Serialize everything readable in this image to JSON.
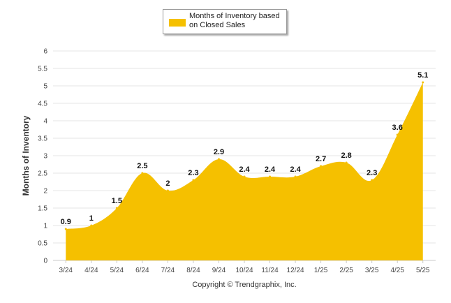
{
  "legend": {
    "label": "Months of Inventory based on Closed Sales",
    "color": "#F5C000"
  },
  "footer": {
    "copyright": "Copyright © Trendgraphix, Inc."
  },
  "chart_data": {
    "type": "area",
    "title": "",
    "xlabel": "",
    "ylabel": "Months of Inventory",
    "categories": [
      "3/24",
      "4/24",
      "5/24",
      "6/24",
      "7/24",
      "8/24",
      "9/24",
      "10/24",
      "11/24",
      "12/24",
      "1/25",
      "2/25",
      "3/25",
      "4/25",
      "5/25"
    ],
    "series": [
      {
        "name": "Months of Inventory based on Closed Sales",
        "values": [
          0.9,
          1,
          1.5,
          2.5,
          2,
          2.3,
          2.9,
          2.4,
          2.4,
          2.4,
          2.7,
          2.8,
          2.3,
          3.6,
          5.1
        ],
        "labels": [
          "0.9",
          "1",
          "1.5",
          "2.5",
          "2",
          "2.3",
          "2.9",
          "2.4",
          "2.4",
          "2.4",
          "2.7",
          "2.8",
          "2.3",
          "3.6",
          "5.1"
        ],
        "color": "#F5C000"
      }
    ],
    "ylim": [
      0,
      6
    ],
    "yticks": [
      "0",
      "0.5",
      "1",
      "1.5",
      "2",
      "2.5",
      "3",
      "3.5",
      "4",
      "4.5",
      "5",
      "5.5",
      "6"
    ],
    "grid": true,
    "legend_position": "top-center"
  }
}
